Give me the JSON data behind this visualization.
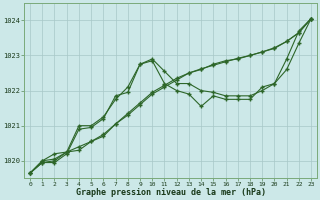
{
  "title": "Graphe pression niveau de la mer (hPa)",
  "background_color": "#cce8e8",
  "grid_color": "#b8d8d8",
  "line_color": "#2d6629",
  "marker_color": "#2d6629",
  "ylim": [
    1019.5,
    1024.5
  ],
  "xlim": [
    -0.5,
    23.5
  ],
  "yticks": [
    1020,
    1021,
    1022,
    1023,
    1024
  ],
  "xtick_labels": [
    "0",
    "1",
    "2",
    "3",
    "4",
    "5",
    "6",
    "7",
    "8",
    "9",
    "10",
    "11",
    "12",
    "13",
    "14",
    "15",
    "16",
    "17",
    "18",
    "19",
    "20",
    "21",
    "22",
    "23"
  ],
  "series": [
    [
      1019.65,
      1019.95,
      1020.0,
      1020.25,
      1021.0,
      1021.0,
      1021.25,
      1021.75,
      1022.1,
      1022.75,
      1022.9,
      1022.55,
      1022.2,
      1022.2,
      1022.0,
      1021.95,
      1021.85,
      1021.85,
      1021.85,
      1022.0,
      1022.2,
      1022.6,
      1023.35,
      1024.05
    ],
    [
      1019.65,
      1020.0,
      1020.2,
      1020.25,
      1020.3,
      1020.55,
      1020.7,
      1021.05,
      1021.3,
      1021.6,
      1021.9,
      1022.1,
      1022.3,
      1022.5,
      1022.6,
      1022.75,
      1022.85,
      1022.9,
      1023.0,
      1023.1,
      1023.2,
      1023.4,
      1023.65,
      1024.05
    ],
    [
      1019.65,
      1020.0,
      1020.05,
      1020.25,
      1020.4,
      1020.55,
      1020.75,
      1021.05,
      1021.35,
      1021.65,
      1021.95,
      1022.15,
      1022.35,
      1022.5,
      1022.62,
      1022.72,
      1022.82,
      1022.92,
      1023.0,
      1023.1,
      1023.22,
      1023.4,
      1023.65,
      1024.05
    ],
    [
      1019.65,
      1019.95,
      1019.95,
      1020.2,
      1020.9,
      1020.95,
      1021.2,
      1021.85,
      1021.95,
      1022.75,
      1022.85,
      1022.2,
      1022.0,
      1021.9,
      1021.55,
      1021.85,
      1021.75,
      1021.75,
      1021.75,
      1022.1,
      1022.2,
      1022.9,
      1023.7,
      1024.05
    ]
  ]
}
